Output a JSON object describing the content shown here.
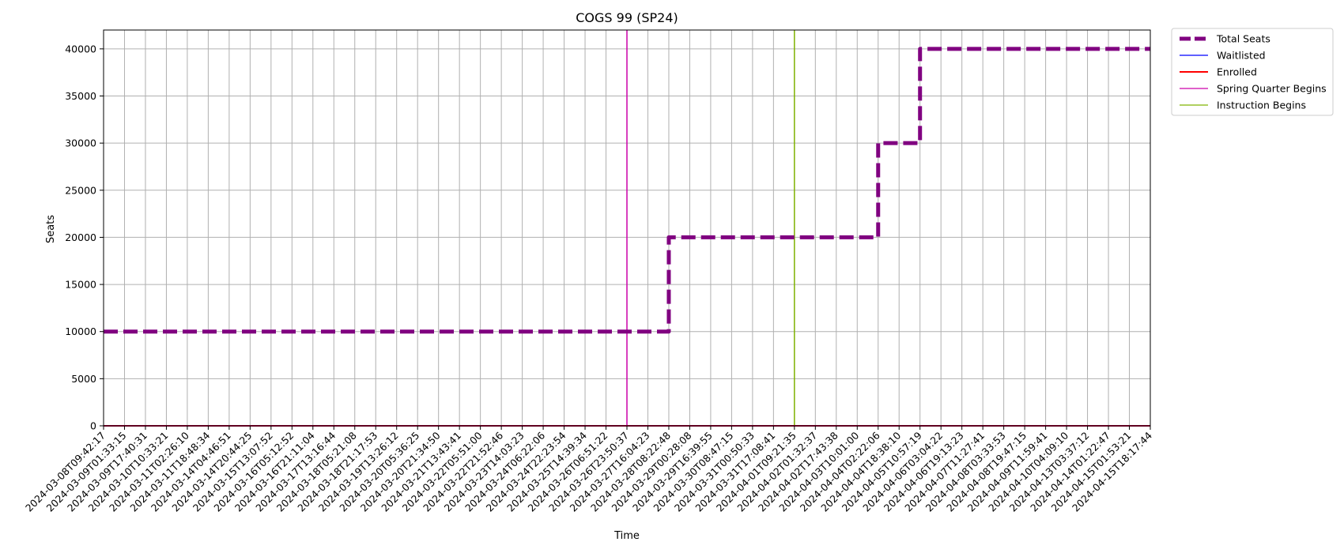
{
  "chart_data": {
    "type": "line",
    "title": "COGS 99 (SP24)",
    "xlabel": "Time",
    "ylabel": "Seats",
    "ylim": [
      0,
      42000
    ],
    "y_ticks": [
      0,
      5000,
      10000,
      15000,
      20000,
      25000,
      30000,
      35000,
      40000
    ],
    "x_tick_labels": [
      "2024-03-08T09:42:17",
      "2024-03-09T01:33:15",
      "2024-03-09T17:40:31",
      "2024-03-10T10:33:21",
      "2024-03-11T02:26:10",
      "2024-03-11T18:48:34",
      "2024-03-14T04:46:51",
      "2024-03-14T20:44:25",
      "2024-03-15T13:07:52",
      "2024-03-16T05:12:52",
      "2024-03-16T21:11:04",
      "2024-03-17T13:16:44",
      "2024-03-18T05:21:08",
      "2024-03-18T21:17:53",
      "2024-03-19T13:26:12",
      "2024-03-20T05:36:25",
      "2024-03-20T21:34:50",
      "2024-03-21T13:43:41",
      "2024-03-22T05:51:00",
      "2024-03-22T21:52:46",
      "2024-03-23T14:03:23",
      "2024-03-24T06:22:06",
      "2024-03-24T22:23:54",
      "2024-03-25T14:39:34",
      "2024-03-26T06:51:22",
      "2024-03-26T23:50:37",
      "2024-03-27T16:04:23",
      "2024-03-28T08:22:48",
      "2024-03-29T00:28:08",
      "2024-03-29T16:39:55",
      "2024-03-30T08:47:15",
      "2024-03-31T00:50:33",
      "2024-03-31T17:08:41",
      "2024-04-01T09:21:35",
      "2024-04-02T01:32:37",
      "2024-04-02T17:43:38",
      "2024-04-03T10:01:00",
      "2024-04-04T02:22:06",
      "2024-04-04T18:38:10",
      "2024-04-05T10:57:19",
      "2024-04-06T03:04:22",
      "2024-04-06T19:13:23",
      "2024-04-07T11:27:41",
      "2024-04-08T03:33:53",
      "2024-04-08T19:47:15",
      "2024-04-09T11:59:41",
      "2024-04-10T04:09:10",
      "2024-04-13T03:37:12",
      "2024-04-14T01:22:47",
      "2024-04-15T01:53:21",
      "2024-04-15T18:17:44"
    ],
    "series": [
      {
        "name": "Total Seats",
        "color": "#800080",
        "style": "dashed-thick",
        "steps": [
          {
            "x": "2024-03-08T09:42:17",
            "value": 10000
          },
          {
            "x": "2024-03-28T08:22:48",
            "value": 20000
          },
          {
            "x": "2024-04-04T02:22:06",
            "value": 30000
          },
          {
            "x": "2024-04-05T10:57:19",
            "value": 40000
          },
          {
            "x": "2024-04-15T18:17:44",
            "value": 40000
          }
        ]
      },
      {
        "name": "Waitlisted",
        "color": "#0000ff",
        "style": "solid",
        "steps": [
          {
            "x": "2024-03-08T09:42:17",
            "value": 0
          },
          {
            "x": "2024-04-15T18:17:44",
            "value": 0
          }
        ]
      },
      {
        "name": "Enrolled",
        "color": "#ff0000",
        "style": "solid-thick",
        "steps": [
          {
            "x": "2024-03-08T09:42:17",
            "value": 0
          },
          {
            "x": "2024-04-15T18:17:44",
            "value": 0
          }
        ]
      }
    ],
    "vlines": [
      {
        "name": "Spring Quarter Begins",
        "color": "#cc00aa",
        "x": "2024-03-26T23:50:37"
      },
      {
        "name": "Instruction Begins",
        "color": "#7fb300",
        "x": "2024-04-01T09:21:35"
      }
    ],
    "legend": {
      "placement": "outside-top-right",
      "entries": [
        {
          "label": "Total Seats",
          "color": "#800080",
          "style": "dashed-thick"
        },
        {
          "label": "Waitlisted",
          "color": "#0000ff",
          "style": "solid"
        },
        {
          "label": "Enrolled",
          "color": "#ff0000",
          "style": "solid-thick"
        },
        {
          "label": "Spring Quarter Begins",
          "color": "#cc00aa",
          "style": "solid"
        },
        {
          "label": "Instruction Begins",
          "color": "#7fb300",
          "style": "solid"
        }
      ]
    },
    "grid": true
  }
}
